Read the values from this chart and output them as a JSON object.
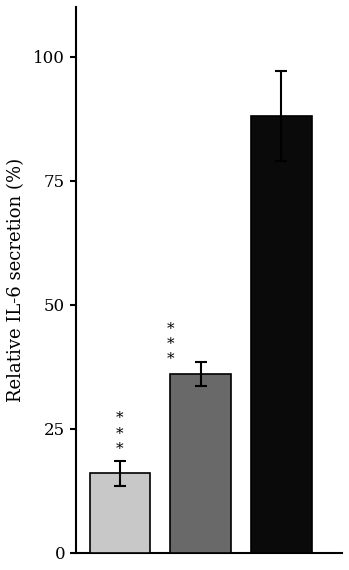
{
  "ylabel": "Relative IL-6 secretion (%)",
  "bar_values": [
    16,
    36,
    88
  ],
  "bar_errors": [
    2.5,
    2.5,
    9
  ],
  "bar_colors": [
    "#c8c8c8",
    "#696969",
    "#0a0a0a"
  ],
  "bar_positions": [
    1,
    2,
    3
  ],
  "bar_width": 0.75,
  "ylim": [
    0,
    110
  ],
  "yticks": [
    0,
    25,
    50,
    75,
    100
  ],
  "asterisk_texts": [
    "*\n*\n*",
    "*\n*\n*",
    ""
  ],
  "asterisk_fontsize": 11,
  "background_color": "#ffffff",
  "title_fontsize": 16,
  "ylabel_fontsize": 13
}
